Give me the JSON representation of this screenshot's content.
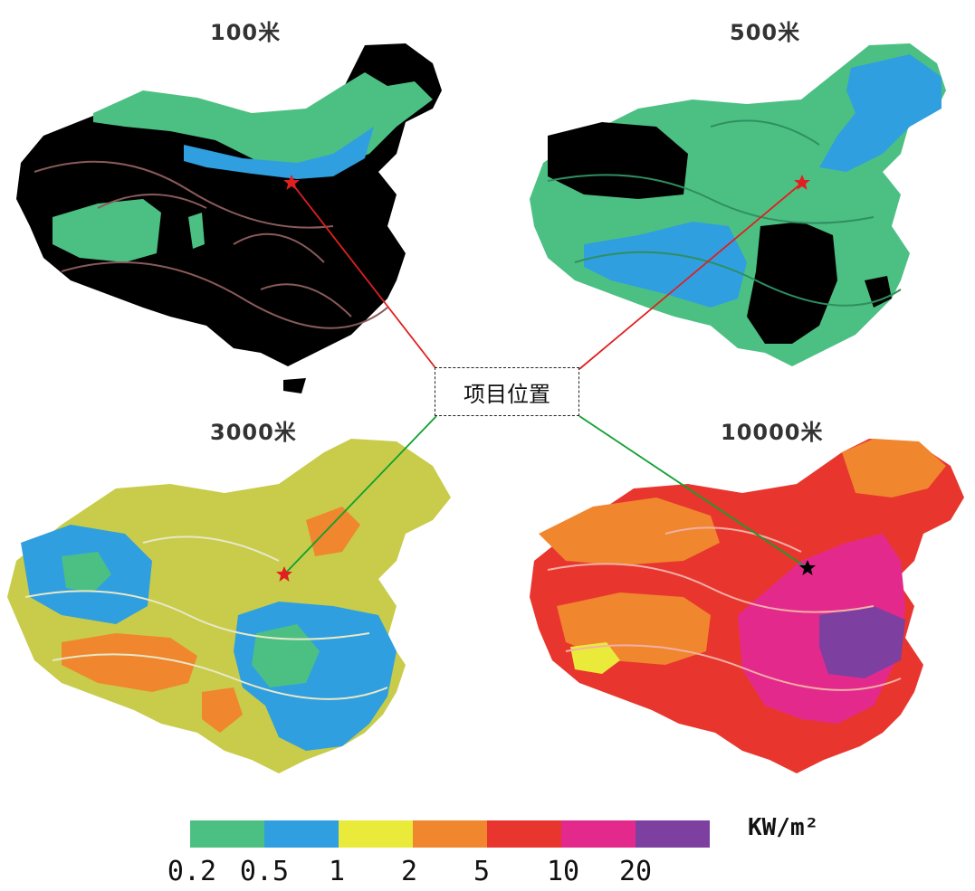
{
  "maps": [
    {
      "title": "100米",
      "base_color": "#000000",
      "contour_color": "#8a5a5a"
    },
    {
      "title": "500米",
      "base_color": "#4cc083",
      "contour_color": "#2f8f60"
    },
    {
      "title": "3000米",
      "base_color": "#c8cc4a",
      "contour_color": "#e8e8c8"
    },
    {
      "title": "10000米",
      "base_color": "#e8362e",
      "contour_color": "#f3b0a8"
    }
  ],
  "project_label": "项目位置",
  "legend": {
    "unit": "KW/m²",
    "ticks": [
      "0.2",
      "0.5",
      "1",
      "2",
      "5",
      "10",
      "20"
    ],
    "colors": [
      "#4cc083",
      "#2f9fe0",
      "#eaea3a",
      "#f0862e",
      "#e8362e",
      "#e32a8c",
      "#7d3fa0"
    ]
  },
  "colors": {
    "line_upper": "#e02020",
    "line_lower": "#10a030",
    "star_red": "#e02020",
    "star_black": "#000000"
  }
}
